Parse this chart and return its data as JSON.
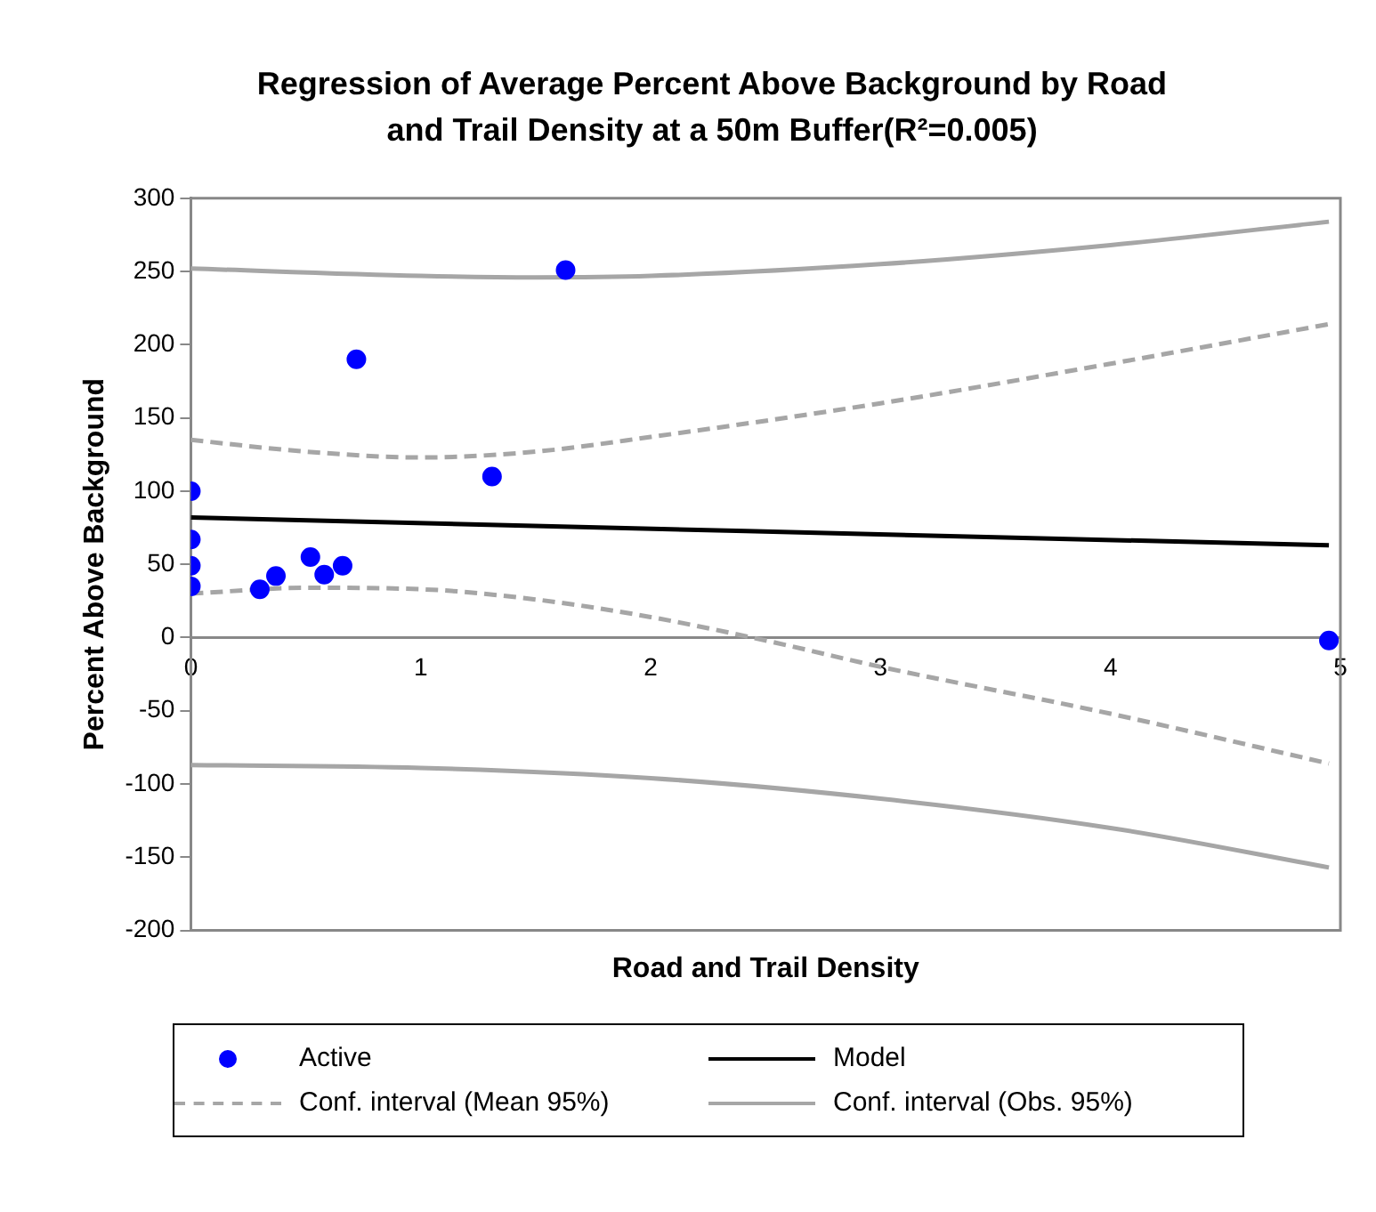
{
  "chart_data": {
    "type": "scatter",
    "title": "Regression of Average Percent Above Background by Road and Trail Density at a 50m Buffer(R²=0.005)",
    "xlabel": "Road and Trail Density",
    "ylabel": "Percent Above Background",
    "xlim": [
      0,
      5
    ],
    "xticks": [
      0,
      1,
      2,
      3,
      4,
      5
    ],
    "ylim": [
      -200,
      300
    ],
    "yticks": [
      -200,
      -150,
      -100,
      -50,
      0,
      50,
      100,
      150,
      200,
      250,
      300
    ],
    "grid": false,
    "legend": "bottom",
    "series": [
      {
        "name": "Active",
        "color": "#0000ff",
        "marker": "circle",
        "x": [
          0,
          0,
          0,
          0,
          0.3,
          0.37,
          0.52,
          0.58,
          0.66,
          0.72,
          1.31,
          1.63,
          4.95
        ],
        "values": [
          100,
          67,
          49,
          35,
          33,
          42,
          55,
          43,
          49,
          190,
          110,
          251,
          -2
        ]
      },
      {
        "name": "Model",
        "type": "line",
        "color": "#000000",
        "marker": "none",
        "line_style": "solid",
        "x": [
          0,
          4.95
        ],
        "values": [
          82,
          63
        ]
      },
      {
        "name": "Conf. interval (Mean 95%)",
        "type": "line",
        "color": "#a6a6a6",
        "marker": "none",
        "line_style": "dashed",
        "x": [
          0,
          0.5,
          1,
          1.5,
          2,
          3,
          4,
          4.95
        ],
        "values": [
          135,
          127,
          123,
          127,
          137,
          160,
          187,
          214
        ]
      },
      {
        "type": "line",
        "color": "#a6a6a6",
        "marker": "none",
        "line_style": "dashed",
        "x": [
          0,
          0.5,
          1,
          1.5,
          2,
          2.5,
          3,
          4,
          4.95
        ],
        "values": [
          30,
          34,
          33,
          26,
          14,
          -2,
          -20,
          -52,
          -86
        ]
      },
      {
        "name": "Conf. interval (Obs. 95%)",
        "type": "line",
        "color": "#a6a6a6",
        "marker": "none",
        "line_style": "solid",
        "x": [
          0,
          1,
          1.5,
          2,
          3,
          4,
          4.95
        ],
        "values": [
          252,
          247,
          246,
          247,
          255,
          268,
          284
        ]
      },
      {
        "type": "line",
        "color": "#a6a6a6",
        "marker": "none",
        "line_style": "solid",
        "x": [
          0,
          1,
          2,
          3,
          4,
          4.95
        ],
        "values": [
          -87,
          -89,
          -96,
          -110,
          -130,
          -157
        ]
      }
    ]
  }
}
